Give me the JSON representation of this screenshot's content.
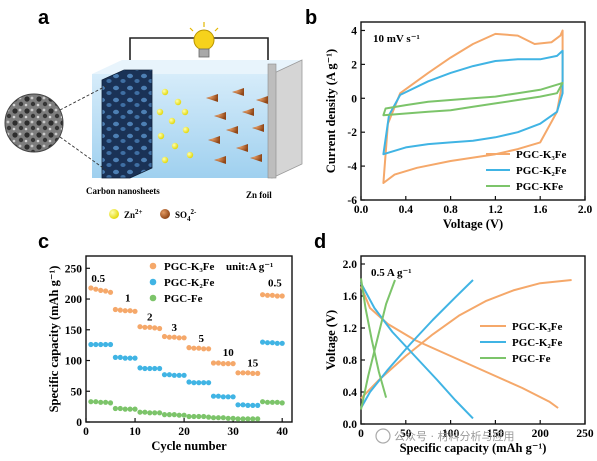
{
  "panels": {
    "a": {
      "label": "a",
      "carbon_label": "Carbon nanosheets",
      "zn_label": "Zn foil",
      "legend_zn": "Zn",
      "legend_zn_sup": "2+",
      "legend_so4": "SO",
      "legend_so4_sub": "4",
      "legend_so4_sup": "2-",
      "colors": {
        "electrolyte": "#b7dcf3",
        "carbon": "#1c3b64",
        "zn_foil": "#cfcfcf",
        "zn_ion": "#f1ec2c",
        "so4_ion": "#b9622b",
        "bulb": "#f6d21c"
      },
      "icons": [
        "light-bulb-icon",
        "sem-image"
      ]
    },
    "b": {
      "label": "b"
    },
    "c": {
      "label": "c"
    },
    "d": {
      "label": "d"
    }
  },
  "watermark": {
    "text": "公众号 · 材料分析与应用"
  },
  "chart_data": [
    {
      "panel": "b",
      "type": "line",
      "annotation": "10 mV s⁻¹",
      "xlabel": "Voltage (V)",
      "ylabel": "Current density (A g⁻¹)",
      "xlim": [
        0.0,
        2.0
      ],
      "ylim": [
        -6,
        4.5
      ],
      "xticks": [
        0.0,
        0.4,
        0.8,
        1.2,
        1.6,
        2.0
      ],
      "yticks": [
        -6,
        -4,
        -2,
        0,
        2,
        4
      ],
      "legend_position": "bottom-right",
      "series": [
        {
          "name": "PGC-K₃Fe",
          "color": "#f5a86a",
          "closed": true,
          "points": [
            [
              0.2,
              -5.0
            ],
            [
              0.24,
              -1.5
            ],
            [
              0.35,
              0.3
            ],
            [
              0.6,
              1.5
            ],
            [
              0.8,
              2.4
            ],
            [
              1.0,
              3.2
            ],
            [
              1.2,
              3.8
            ],
            [
              1.4,
              3.7
            ],
            [
              1.55,
              3.2
            ],
            [
              1.7,
              3.3
            ],
            [
              1.78,
              3.7
            ],
            [
              1.8,
              4.0
            ],
            [
              1.8,
              1.0
            ],
            [
              1.75,
              -0.8
            ],
            [
              1.6,
              -2.6
            ],
            [
              1.4,
              -3.0
            ],
            [
              1.2,
              -3.3
            ],
            [
              1.0,
              -3.5
            ],
            [
              0.8,
              -3.7
            ],
            [
              0.5,
              -4.1
            ],
            [
              0.3,
              -4.5
            ],
            [
              0.2,
              -5.0
            ]
          ]
        },
        {
          "name": "PGC-K₂Fe",
          "color": "#40b4e4",
          "closed": true,
          "points": [
            [
              0.2,
              -3.3
            ],
            [
              0.25,
              -1.0
            ],
            [
              0.35,
              0.2
            ],
            [
              0.6,
              1.0
            ],
            [
              0.8,
              1.5
            ],
            [
              1.0,
              1.9
            ],
            [
              1.2,
              2.2
            ],
            [
              1.4,
              2.3
            ],
            [
              1.6,
              2.3
            ],
            [
              1.75,
              2.5
            ],
            [
              1.8,
              2.8
            ],
            [
              1.8,
              0.3
            ],
            [
              1.75,
              -0.8
            ],
            [
              1.6,
              -1.5
            ],
            [
              1.4,
              -2.0
            ],
            [
              1.2,
              -2.3
            ],
            [
              1.0,
              -2.5
            ],
            [
              0.8,
              -2.6
            ],
            [
              0.6,
              -2.7
            ],
            [
              0.4,
              -2.9
            ],
            [
              0.2,
              -3.3
            ]
          ]
        },
        {
          "name": "PGC-KFe",
          "color": "#7cc46a",
          "closed": true,
          "points": [
            [
              0.2,
              -1.0
            ],
            [
              0.22,
              -0.6
            ],
            [
              0.4,
              -0.4
            ],
            [
              0.6,
              -0.2
            ],
            [
              0.8,
              -0.1
            ],
            [
              1.0,
              0.0
            ],
            [
              1.2,
              0.1
            ],
            [
              1.4,
              0.3
            ],
            [
              1.6,
              0.5
            ],
            [
              1.75,
              0.8
            ],
            [
              1.8,
              0.9
            ],
            [
              1.75,
              0.3
            ],
            [
              1.6,
              0.1
            ],
            [
              1.4,
              -0.1
            ],
            [
              1.2,
              -0.3
            ],
            [
              1.0,
              -0.5
            ],
            [
              0.8,
              -0.7
            ],
            [
              0.6,
              -0.8
            ],
            [
              0.4,
              -0.9
            ],
            [
              0.2,
              -1.0
            ]
          ]
        }
      ]
    },
    {
      "panel": "c",
      "type": "scatter",
      "unit_label": "unit:A g⁻¹",
      "xlabel": "Cycle number",
      "ylabel": "Specific capacity (mAh g⁻¹)",
      "xlim": [
        0,
        42
      ],
      "ylim": [
        0,
        270
      ],
      "xticks": [
        0,
        10,
        20,
        30,
        40
      ],
      "yticks": [
        0,
        50,
        100,
        150,
        200,
        250
      ],
      "legend_position": "top-center",
      "rate_labels": [
        {
          "text": "0.5",
          "x": 2.5,
          "y": 228
        },
        {
          "text": "1",
          "x": 8.5,
          "y": 196
        },
        {
          "text": "2",
          "x": 13.0,
          "y": 165
        },
        {
          "text": "3",
          "x": 18.0,
          "y": 148
        },
        {
          "text": "5",
          "x": 23.5,
          "y": 130
        },
        {
          "text": "10",
          "x": 29.0,
          "y": 107
        },
        {
          "text": "15",
          "x": 34.0,
          "y": 90
        },
        {
          "text": "0.5",
          "x": 38.5,
          "y": 220
        }
      ],
      "series": [
        {
          "name": "PGC-K₃Fe",
          "color": "#f5a86a",
          "x": [
            1,
            2,
            3,
            4,
            5,
            6,
            7,
            8,
            9,
            10,
            11,
            12,
            13,
            14,
            15,
            16,
            17,
            18,
            19,
            20,
            21,
            22,
            23,
            24,
            25,
            26,
            27,
            28,
            29,
            30,
            31,
            32,
            33,
            34,
            35,
            36,
            37,
            38,
            39,
            40
          ],
          "values": [
            218,
            216,
            214,
            213,
            211,
            183,
            182,
            181,
            181,
            180,
            155,
            154,
            154,
            153,
            152,
            139,
            138,
            138,
            137,
            137,
            121,
            120,
            120,
            119,
            119,
            96,
            96,
            95,
            95,
            95,
            80,
            80,
            80,
            79,
            79,
            207,
            206,
            206,
            205,
            205
          ]
        },
        {
          "name": "PGC-K₂Fe",
          "color": "#40b4e4",
          "x": [
            1,
            2,
            3,
            4,
            5,
            6,
            7,
            8,
            9,
            10,
            11,
            12,
            13,
            14,
            15,
            16,
            17,
            18,
            19,
            20,
            21,
            22,
            23,
            24,
            25,
            26,
            27,
            28,
            29,
            30,
            31,
            32,
            33,
            34,
            35,
            36,
            37,
            38,
            39,
            40
          ],
          "values": [
            126,
            126,
            126,
            126,
            126,
            105,
            105,
            104,
            104,
            104,
            88,
            87,
            87,
            87,
            87,
            77,
            77,
            76,
            76,
            76,
            65,
            64,
            64,
            64,
            64,
            42,
            42,
            41,
            41,
            41,
            28,
            28,
            27,
            27,
            27,
            130,
            129,
            129,
            128,
            128
          ]
        },
        {
          "name": "PGC-Fe",
          "color": "#7cc46a",
          "x": [
            1,
            2,
            3,
            4,
            5,
            6,
            7,
            8,
            9,
            10,
            11,
            12,
            13,
            14,
            15,
            16,
            17,
            18,
            19,
            20,
            21,
            22,
            23,
            24,
            25,
            26,
            27,
            28,
            29,
            30,
            31,
            32,
            33,
            34,
            35,
            36,
            37,
            38,
            39,
            40
          ],
          "values": [
            33,
            33,
            32,
            32,
            31,
            22,
            22,
            21,
            21,
            21,
            16,
            16,
            15,
            15,
            15,
            12,
            12,
            12,
            11,
            11,
            9,
            9,
            9,
            9,
            8,
            7,
            7,
            7,
            6,
            6,
            5,
            5,
            5,
            5,
            5,
            33,
            32,
            32,
            32,
            31
          ]
        }
      ]
    },
    {
      "panel": "d",
      "type": "line",
      "annotation": "0.5 A g⁻¹",
      "xlabel": "Specific capacity (mAh g⁻¹)",
      "ylabel": "Voltage (V)",
      "xlim": [
        0,
        250
      ],
      "ylim": [
        0.0,
        2.1
      ],
      "xticks": [
        0,
        50,
        100,
        150,
        200,
        250
      ],
      "yticks": [
        0.0,
        0.4,
        0.8,
        1.2,
        1.6,
        2.0
      ],
      "legend_position": "center-right",
      "series": [
        {
          "name": "PGC-K₃Fe",
          "color": "#f5a86a",
          "segments": [
            [
              [
                0,
                0.32
              ],
              [
                20,
                0.55
              ],
              [
                50,
                0.85
              ],
              [
                80,
                1.12
              ],
              [
                110,
                1.36
              ],
              [
                140,
                1.54
              ],
              [
                170,
                1.67
              ],
              [
                200,
                1.76
              ],
              [
                235,
                1.8
              ]
            ],
            [
              [
                0,
                1.72
              ],
              [
                10,
                1.45
              ],
              [
                30,
                1.25
              ],
              [
                60,
                1.05
              ],
              [
                100,
                0.85
              ],
              [
                140,
                0.65
              ],
              [
                180,
                0.45
              ],
              [
                210,
                0.28
              ],
              [
                220,
                0.2
              ]
            ]
          ]
        },
        {
          "name": "PGC-K₂Fe",
          "color": "#40b4e4",
          "segments": [
            [
              [
                0,
                0.2
              ],
              [
                10,
                0.4
              ],
              [
                30,
                0.68
              ],
              [
                55,
                1.0
              ],
              [
                80,
                1.3
              ],
              [
                105,
                1.58
              ],
              [
                125,
                1.8
              ]
            ],
            [
              [
                0,
                1.76
              ],
              [
                15,
                1.45
              ],
              [
                35,
                1.15
              ],
              [
                60,
                0.85
              ],
              [
                85,
                0.55
              ],
              [
                105,
                0.3
              ],
              [
                125,
                0.07
              ]
            ]
          ]
        },
        {
          "name": "PGC-Fe",
          "color": "#7cc46a",
          "segments": [
            [
              [
                0,
                0.18
              ],
              [
                8,
                0.6
              ],
              [
                18,
                1.05
              ],
              [
                28,
                1.5
              ],
              [
                38,
                1.8
              ]
            ],
            [
              [
                0,
                1.82
              ],
              [
                5,
                1.45
              ],
              [
                12,
                1.05
              ],
              [
                20,
                0.65
              ],
              [
                28,
                0.33
              ]
            ]
          ]
        }
      ]
    }
  ]
}
